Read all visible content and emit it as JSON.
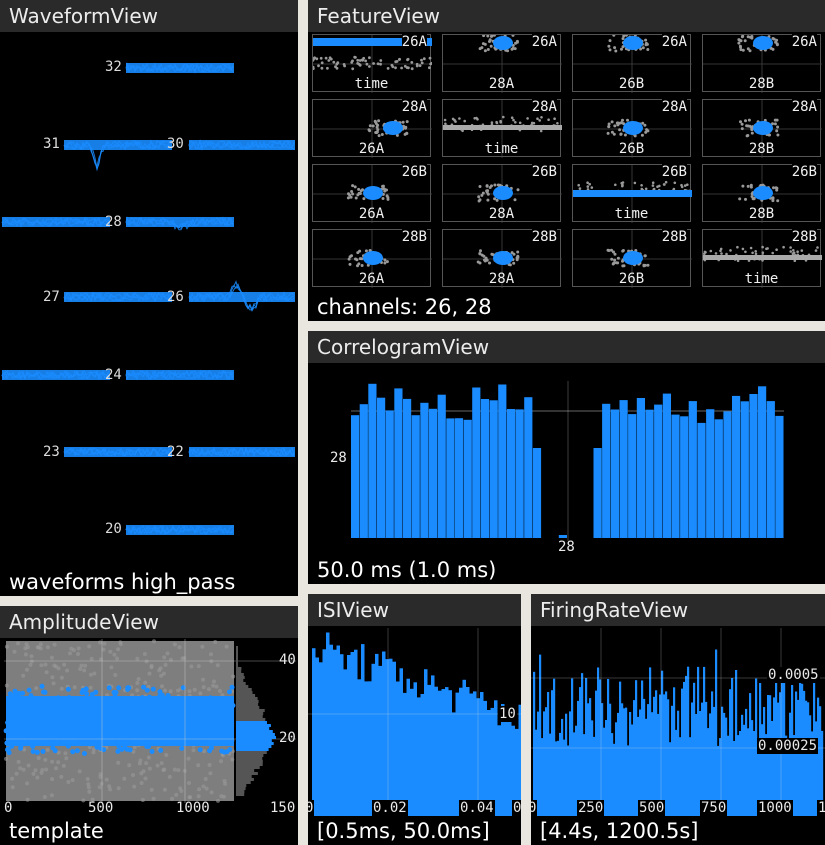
{
  "colors": {
    "accent": "#1a8cff",
    "gray": "#8c8c8c",
    "background": "#000000",
    "titlebar": "#2a2a2a"
  },
  "waveform": {
    "title": "WaveformView",
    "status": "waveforms high_pass",
    "channels": [
      "32",
      "31",
      "30",
      "28",
      "27",
      "26",
      "24",
      "23",
      "22",
      "20"
    ]
  },
  "feature": {
    "title": "FeatureView",
    "status": "channels: 26, 28",
    "grid": [
      [
        {
          "y": "26A",
          "x": "time"
        },
        {
          "y": "26A",
          "x": "28A"
        },
        {
          "y": "26A",
          "x": "26B"
        },
        {
          "y": "26A",
          "x": "28B"
        }
      ],
      [
        {
          "y": "28A",
          "x": "26A"
        },
        {
          "y": "28A",
          "x": "time"
        },
        {
          "y": "28A",
          "x": "26B"
        },
        {
          "y": "28A",
          "x": "28B"
        }
      ],
      [
        {
          "y": "26B",
          "x": "26A"
        },
        {
          "y": "26B",
          "x": "28A"
        },
        {
          "y": "26B",
          "x": "time"
        },
        {
          "y": "26B",
          "x": "28B"
        }
      ],
      [
        {
          "y": "28B",
          "x": "26A"
        },
        {
          "y": "28B",
          "x": "28A"
        },
        {
          "y": "28B",
          "x": "26B"
        },
        {
          "y": "28B",
          "x": "time"
        }
      ]
    ]
  },
  "correlogram": {
    "title": "CorrelogramView",
    "status": "50.0 ms (1.0 ms)",
    "ylabel": "28",
    "xlabel": "28"
  },
  "amplitude": {
    "title": "AmplitudeView",
    "status": "template",
    "xticks": [
      "0",
      "500",
      "1000",
      "150"
    ],
    "yticks": [
      "40",
      "20"
    ]
  },
  "isi": {
    "title": "ISIView",
    "status": "[0.5ms, 50.0ms]",
    "xticks": [
      "0",
      "0.02",
      "0.04",
      "0"
    ],
    "ytick": "10"
  },
  "firingrate": {
    "title": "FiringRateView",
    "status": "[4.4s, 1200.5s]",
    "xticks": [
      "0",
      "250",
      "500",
      "750",
      "1000",
      "1"
    ],
    "yticks": [
      "0.0005",
      "0.00025"
    ]
  }
}
